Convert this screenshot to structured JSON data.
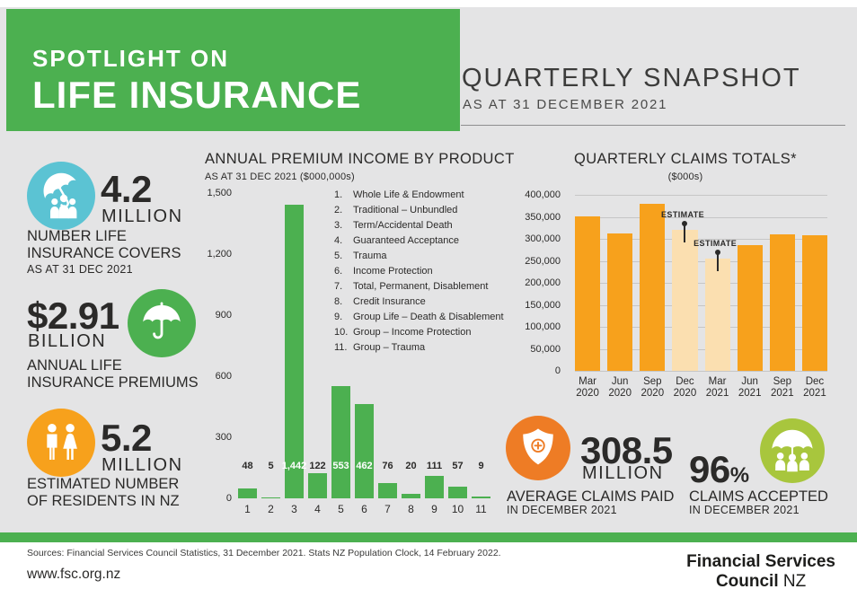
{
  "colors": {
    "green": "#4CB050",
    "page_bg": "#E4E4E5",
    "dark": "#2B2A29",
    "blue_circle": "#5BC3D3",
    "orange_circle": "#F7A11C",
    "orange_bar": "#F7A11C",
    "orange_bar_light": "#FBDFB0",
    "deep_orange_circle": "#EE7C25",
    "lime_circle": "#A8C63D"
  },
  "header": {
    "banner_line1": "SPOTLIGHT ON",
    "banner_line2": "LIFE INSURANCE",
    "snapshot_title": "QUARTERLY SNAPSHOT",
    "snapshot_subtitle": "AS AT 31 DECEMBER 2021"
  },
  "stats_left": [
    {
      "icon": "umbrella-family-icon",
      "value": "4.2",
      "unit": "MILLION",
      "caption": "NUMBER LIFE\nINSURANCE COVERS",
      "subcaption": "AS AT 31 DEC 2021"
    },
    {
      "icon": "umbrella-icon",
      "value": "$2.91",
      "unit": "BILLION",
      "caption": "ANNUAL LIFE\nINSURANCE PREMIUMS"
    },
    {
      "icon": "man-woman-icon",
      "value": "5.2",
      "unit": "MILLION",
      "caption": "ESTIMATED NUMBER\nOF RESIDENTS IN NZ"
    }
  ],
  "stats_bottom": [
    {
      "icon": "shield-cross-icon",
      "value": "308.5",
      "unit": "MILLION",
      "caption": "AVERAGE CLAIMS PAID",
      "subcaption": "IN DECEMBER 2021"
    },
    {
      "icon": "umbrella-group-icon",
      "value": "96",
      "value_suffix": "%",
      "caption": "CLAIMS ACCEPTED",
      "subcaption": "IN DECEMBER 2021"
    }
  ],
  "chart_data": [
    {
      "type": "bar",
      "title": "ANNUAL PREMIUM INCOME BY PRODUCT",
      "subtitle": "AS AT 31 DEC 2021 ($000,000s)",
      "categories": [
        "1",
        "2",
        "3",
        "4",
        "5",
        "6",
        "7",
        "8",
        "9",
        "10",
        "11"
      ],
      "values": [
        48,
        5,
        1442,
        122,
        553,
        462,
        76,
        20,
        111,
        57,
        9
      ],
      "value_labels": [
        "48",
        "5",
        "1,442",
        "122",
        "553",
        "462",
        "76",
        "20",
        "111",
        "57",
        "9"
      ],
      "xlabel": "",
      "ylabel": "",
      "ylim": [
        0,
        1500
      ],
      "ytick_labels": [
        "0",
        "300",
        "600",
        "900",
        "1,200",
        "1,500"
      ],
      "grid": false,
      "legend_position": "right",
      "legend": [
        "Whole Life & Endowment",
        "Traditional – Unbundled",
        "Term/Accidental Death",
        "Guaranteed Acceptance",
        "Trauma",
        "Income Protection",
        "Total, Permanent, Disablement",
        "Credit Insurance",
        "Group Life – Death & Disablement",
        "Group – Income Protection",
        "Group – Trauma"
      ]
    },
    {
      "type": "bar",
      "title": "QUARTERLY CLAIMS TOTALS*",
      "subtitle": "($000s)",
      "categories": [
        "Mar\n2020",
        "Jun\n2020",
        "Sep\n2020",
        "Dec\n2020",
        "Mar\n2021",
        "Jun\n2021",
        "Sep\n2021",
        "Dec\n2021"
      ],
      "values": [
        352000,
        312000,
        380000,
        320000,
        255000,
        285000,
        310000,
        308000
      ],
      "estimates": [
        false,
        false,
        false,
        true,
        true,
        false,
        false,
        false
      ],
      "estimate_label": "ESTIMATE",
      "xlabel": "",
      "ylabel": "",
      "ylim": [
        0,
        400000
      ],
      "ytick_labels": [
        "0",
        "50,000",
        "100,000",
        "150,000",
        "200,000",
        "250,000",
        "300,000",
        "350,000",
        "400,000"
      ],
      "grid": true,
      "legend_position": "none"
    }
  ],
  "footer": {
    "sources": "Sources: Financial Services Council Statistics, 31 December 2021. Stats NZ Population Clock, 14 February 2022.",
    "website": "www.fsc.org.nz",
    "logo_line1": "Financial Services",
    "logo_line2_bold": "Council",
    "logo_line2_light": " NZ"
  }
}
